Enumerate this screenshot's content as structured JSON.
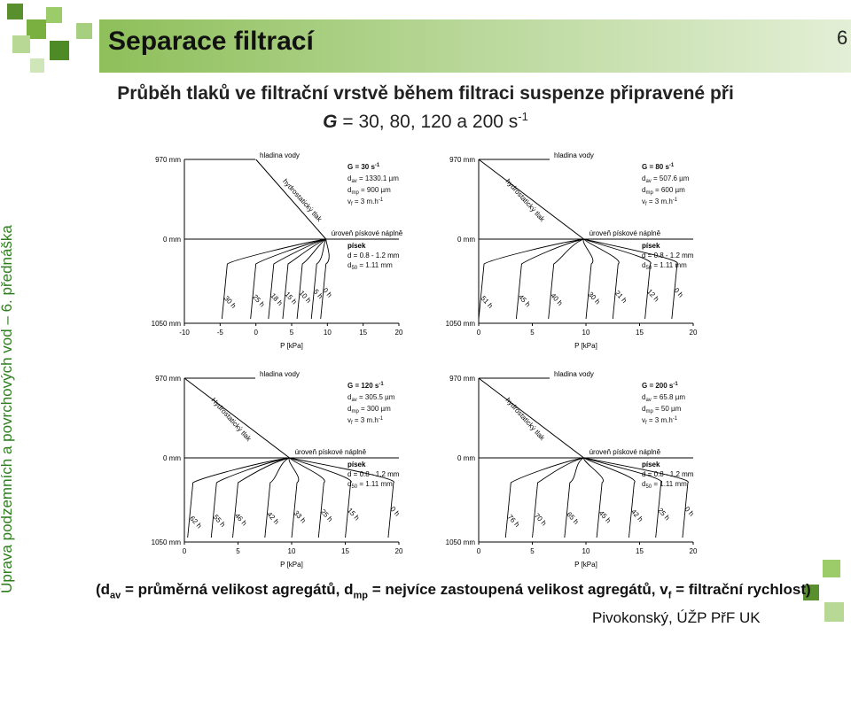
{
  "slide": {
    "title": "Separace filtrací",
    "page_number": "6",
    "sidebar_text": "Úprava podzemních a povrchových vod – 6. přednáška",
    "subtitle_line1": "Průběh tlaků ve filtrační vrstvě během filtraci suspenze připravené při",
    "subtitle_g": "G",
    "subtitle_rest": " = 30, 80, 120 a 200 s",
    "subtitle_exp": "-1",
    "footnote_open": "(d",
    "footnote_sub1": "av",
    "footnote_mid1": " = průměrná velikost agregátů, d",
    "footnote_sub2": "mp",
    "footnote_mid2": " = nejvíce zastoupená velikost agregátů, v",
    "footnote_sub3": "f",
    "footnote_end": " = filtrační rychlost)",
    "author": "Pivokonský, ÚŽP PřF UK",
    "colors": {
      "accent": "#8ebf5a",
      "sidebar_text": "#2e7d1f"
    }
  },
  "chart_data": [
    {
      "type": "line",
      "xlabel": "P [kPa]",
      "xticks": [
        "-10",
        "-5",
        "0",
        "5",
        "10",
        "15",
        "20"
      ],
      "xlim": [
        -10,
        20
      ],
      "depth_labels": [
        "970 mm",
        "0 mm",
        "1050 mm"
      ],
      "water_label": "hladina vody",
      "hydro_label": "hydrostatický tlak",
      "sand_level_label": "úroveň pískové náplně",
      "params": [
        "G = 30 s",
        "d",
        "= 1330.1 µm",
        "d",
        "= 900 µm",
        "v",
        "= 3 m.h"
      ],
      "sand": [
        "písek",
        "d = 0.8 - 1.2 mm",
        "d",
        "= 1.11 mm"
      ],
      "series": [
        {
          "name": "0 h",
          "end_p": 9.8
        },
        {
          "name": "5 h",
          "end_p": 8.5
        },
        {
          "name": "10 h",
          "end_p": 6.5
        },
        {
          "name": "15 h",
          "end_p": 4.5
        },
        {
          "name": "18 h",
          "end_p": 2.5
        },
        {
          "name": "25 h",
          "end_p": 0.0
        },
        {
          "name": "30 h",
          "end_p": -4.0
        }
      ]
    },
    {
      "type": "line",
      "xlabel": "P [kPa]",
      "xticks": [
        "0",
        "5",
        "10",
        "15",
        "20"
      ],
      "xlim": [
        0,
        20
      ],
      "depth_labels": [
        "970 mm",
        "0 mm",
        "1050 mm"
      ],
      "water_label": "hladina vody",
      "hydro_label": "hydrostatický tlak",
      "sand_level_label": "úroveň pískové náplně",
      "params": [
        "G = 80 s",
        "d",
        "= 507.6 µm",
        "d",
        "= 600 µm",
        "v",
        "= 3 m.h"
      ],
      "sand": [
        "písek",
        "d = 0.8 - 1.2 mm",
        "d",
        "= 1.11 mm"
      ],
      "series": [
        {
          "name": "0 h",
          "end_p": 18.5
        },
        {
          "name": "12 h",
          "end_p": 16.0
        },
        {
          "name": "21 h",
          "end_p": 13.0
        },
        {
          "name": "30 h",
          "end_p": 10.5
        },
        {
          "name": "40 h",
          "end_p": 7.0
        },
        {
          "name": "45 h",
          "end_p": 4.0
        },
        {
          "name": "51 h",
          "end_p": 0.5
        }
      ]
    },
    {
      "type": "line",
      "xlabel": "P [kPa]",
      "xticks": [
        "0",
        "5",
        "10",
        "15",
        "20"
      ],
      "xlim": [
        0,
        20
      ],
      "depth_labels": [
        "970 mm",
        "0 mm",
        "1050 mm"
      ],
      "water_label": "hladina vody",
      "hydro_label": "Hydrostatický tlak",
      "sand_level_label": "úroveň pískové náplně",
      "params": [
        "G = 120 s",
        "d",
        "= 305.5 µm",
        "d",
        "= 300 µm",
        "v",
        "= 3 m.h"
      ],
      "sand": [
        "písek",
        "d = 0.8 - 1.2 mm",
        "d",
        "= 1.11 mm"
      ],
      "series": [
        {
          "name": "0 h",
          "end_p": 19.5
        },
        {
          "name": "15 h",
          "end_p": 15.5
        },
        {
          "name": "25 h",
          "end_p": 13.0
        },
        {
          "name": "33 h",
          "end_p": 10.5
        },
        {
          "name": "42 h",
          "end_p": 8.0
        },
        {
          "name": "46 h",
          "end_p": 5.0
        },
        {
          "name": "55 h",
          "end_p": 3.0
        },
        {
          "name": "62 h",
          "end_p": 0.8
        }
      ]
    },
    {
      "type": "line",
      "xlabel": "P [kPa]",
      "xticks": [
        "0",
        "5",
        "10",
        "15",
        "20"
      ],
      "xlim": [
        0,
        20
      ],
      "depth_labels": [
        "970 mm",
        "0 mm",
        "1050 mm"
      ],
      "water_label": "hladina vody",
      "hydro_label": "hydrostatický tlak",
      "sand_level_label": "úroveň pískové náplně",
      "params": [
        "G = 200 s",
        "d",
        "= 65.8 µm",
        "d",
        "= 50 µm",
        "v",
        "= 3 m.h"
      ],
      "sand": [
        "písek",
        "d = 0.8 - 1.2 mm",
        "d",
        "= 1.11 mm"
      ],
      "series": [
        {
          "name": "0 h",
          "end_p": 19.5
        },
        {
          "name": "25 h",
          "end_p": 17.0
        },
        {
          "name": "42 h",
          "end_p": 14.5
        },
        {
          "name": "45 h",
          "end_p": 11.5
        },
        {
          "name": "65 h",
          "end_p": 8.5
        },
        {
          "name": "70 h",
          "end_p": 5.5
        },
        {
          "name": "76 h",
          "end_p": 3.0
        }
      ]
    }
  ]
}
